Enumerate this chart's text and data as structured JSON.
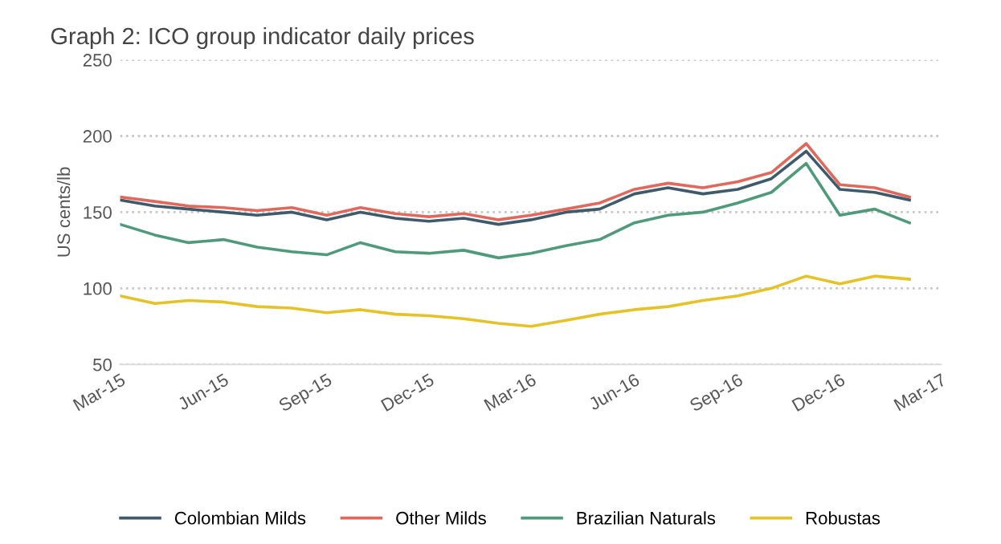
{
  "chart_data": {
    "type": "line",
    "title": "Graph 2: ICO group indicator daily prices",
    "ylabel": "US cents/lb",
    "x": [
      "2015-03-01",
      "2015-04-01",
      "2015-05-01",
      "2015-06-01",
      "2015-07-01",
      "2015-08-01",
      "2015-09-01",
      "2015-10-01",
      "2015-11-01",
      "2015-12-01",
      "2016-01-01",
      "2016-02-01",
      "2016-03-01",
      "2016-04-01",
      "2016-05-01",
      "2016-06-01",
      "2016-07-01",
      "2016-08-01",
      "2016-09-01",
      "2016-10-01",
      "2016-11-01",
      "2016-12-01",
      "2017-01-01",
      "2017-02-01"
    ],
    "series": [
      {
        "name": "Colombian Milds",
        "color": "#3f5b6b",
        "values": [
          158,
          154,
          152,
          150,
          148,
          150,
          145,
          150,
          146,
          144,
          146,
          142,
          145,
          150,
          152,
          162,
          166,
          162,
          165,
          172,
          190,
          165,
          163,
          158
        ]
      },
      {
        "name": "Other Milds",
        "color": "#e2685c",
        "values": [
          160,
          157,
          154,
          153,
          151,
          153,
          148,
          153,
          149,
          147,
          149,
          145,
          148,
          152,
          156,
          165,
          169,
          166,
          170,
          176,
          195,
          168,
          166,
          160
        ]
      },
      {
        "name": "Brazilian Naturals",
        "color": "#4f9a7a",
        "values": [
          142,
          135,
          130,
          132,
          127,
          124,
          122,
          130,
          124,
          123,
          125,
          120,
          123,
          128,
          132,
          143,
          148,
          150,
          156,
          163,
          182,
          148,
          152,
          143
        ]
      },
      {
        "name": "Robustas",
        "color": "#e6c229",
        "values": [
          95,
          90,
          92,
          91,
          88,
          87,
          84,
          86,
          83,
          82,
          80,
          77,
          75,
          79,
          83,
          86,
          88,
          92,
          95,
          100,
          108,
          103,
          108,
          106
        ]
      }
    ],
    "ylim": [
      50,
      250
    ],
    "yticks": [
      50,
      100,
      150,
      200,
      250
    ],
    "xlim": [
      "2015-03-01",
      "2017-03-01"
    ],
    "xticks": [
      {
        "value": "2015-03-01",
        "label": "Mar-15"
      },
      {
        "value": "2015-06-01",
        "label": "Jun-15"
      },
      {
        "value": "2015-09-01",
        "label": "Sep-15"
      },
      {
        "value": "2015-12-01",
        "label": "Dec-15"
      },
      {
        "value": "2016-03-01",
        "label": "Mar-16"
      },
      {
        "value": "2016-06-01",
        "label": "Jun-16"
      },
      {
        "value": "2016-09-01",
        "label": "Sep-16"
      },
      {
        "value": "2016-12-01",
        "label": "Dec-16"
      },
      {
        "value": "2017-03-01",
        "label": "Mar-17"
      }
    ],
    "grid": "y",
    "legend": "bottom",
    "marker": "none",
    "line_style": "solid"
  }
}
